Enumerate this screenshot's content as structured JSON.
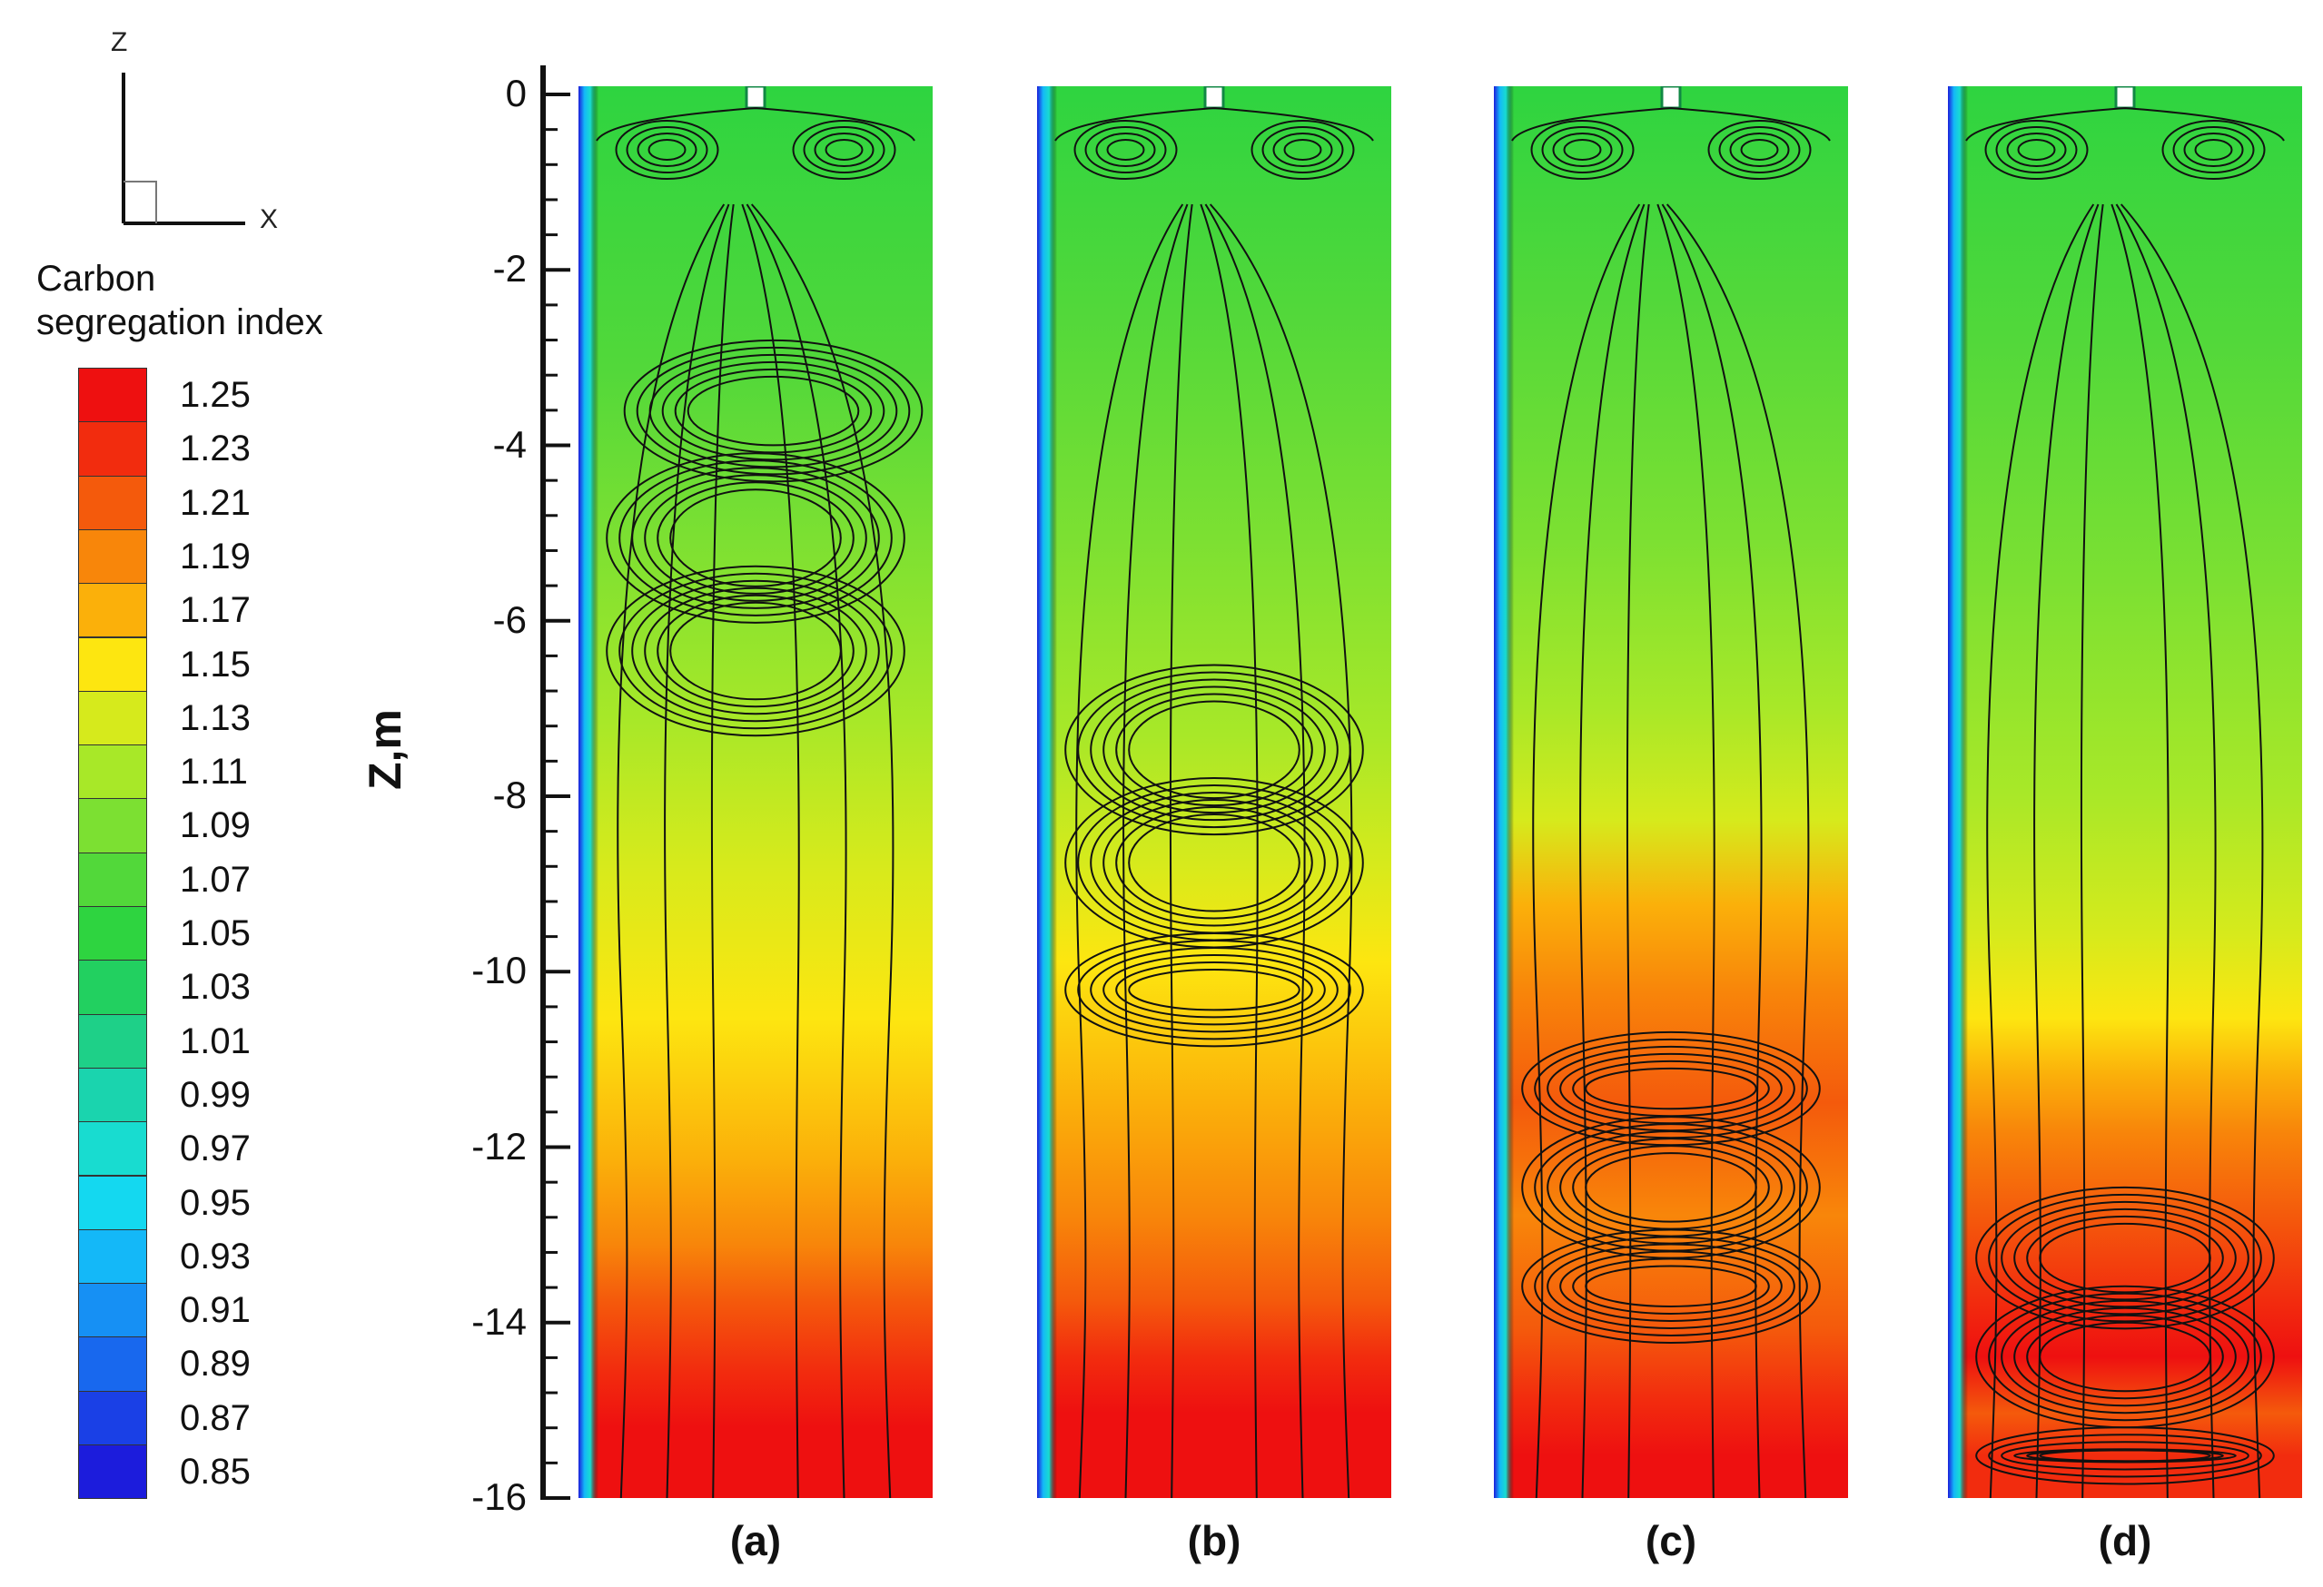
{
  "triad": {
    "z": "Z",
    "x": "X"
  },
  "legend": {
    "title_line1": "Carbon",
    "title_line2": "segregation index",
    "levels": [
      {
        "label": "1.25",
        "color": "#ee1010"
      },
      {
        "label": "1.23",
        "color": "#f22c0e"
      },
      {
        "label": "1.21",
        "color": "#f45a0c"
      },
      {
        "label": "1.19",
        "color": "#f8860a"
      },
      {
        "label": "1.17",
        "color": "#fbb00a"
      },
      {
        "label": "1.15",
        "color": "#fde610"
      },
      {
        "label": "1.13",
        "color": "#d6ea1c"
      },
      {
        "label": "1.11",
        "color": "#a8e828"
      },
      {
        "label": "1.09",
        "color": "#7ce032"
      },
      {
        "label": "1.07",
        "color": "#52d83a"
      },
      {
        "label": "1.05",
        "color": "#2ed440"
      },
      {
        "label": "1.03",
        "color": "#22d060"
      },
      {
        "label": "1.01",
        "color": "#1ed088"
      },
      {
        "label": "0.99",
        "color": "#1ad4ae"
      },
      {
        "label": "0.97",
        "color": "#18dcd0"
      },
      {
        "label": "0.95",
        "color": "#14d8f0"
      },
      {
        "label": "0.93",
        "color": "#14b8f8"
      },
      {
        "label": "0.91",
        "color": "#1690f4"
      },
      {
        "label": "0.89",
        "color": "#1868ee"
      },
      {
        "label": "0.87",
        "color": "#1a40e6"
      },
      {
        "label": "0.85",
        "color": "#1c1cdc"
      }
    ]
  },
  "z_axis": {
    "title": "Z,m",
    "ticks": [
      "0",
      "-2",
      "-4",
      "-6",
      "-8",
      "-10",
      "-12",
      "-14",
      "-16"
    ],
    "range": [
      0,
      -16
    ]
  },
  "panels": [
    {
      "label": "(a)"
    },
    {
      "label": "(b)"
    },
    {
      "label": "(c)"
    },
    {
      "label": "(d)"
    }
  ]
}
